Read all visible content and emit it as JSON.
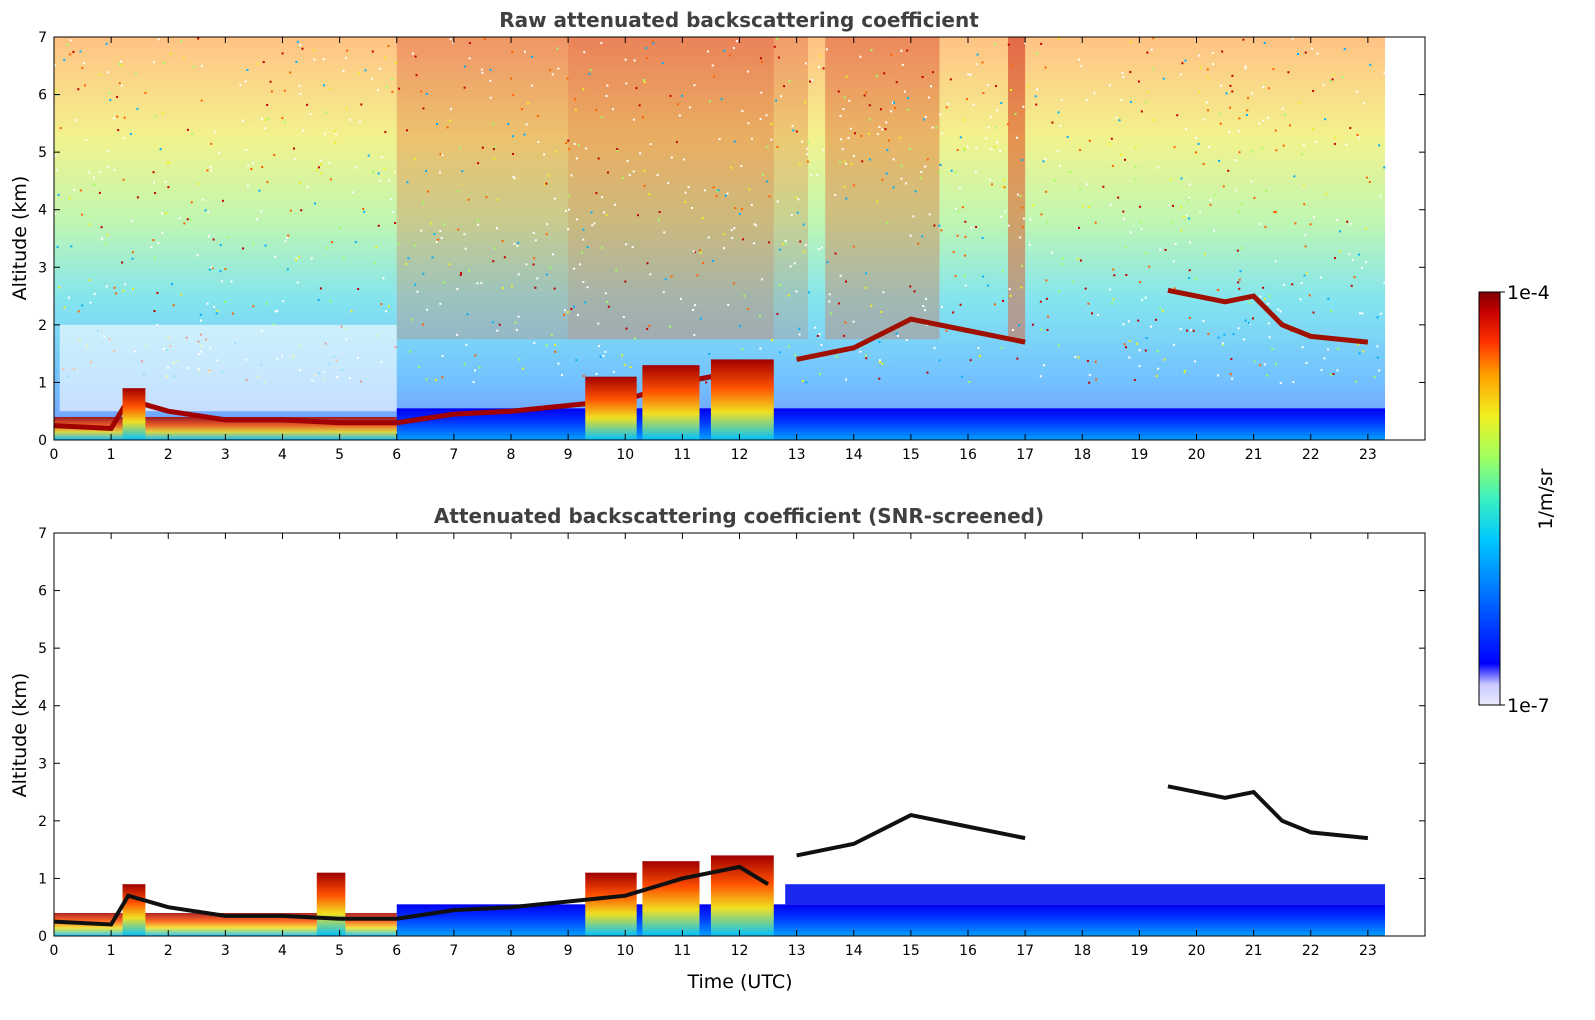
{
  "chart_data": [
    {
      "type": "heatmap",
      "title": "Raw attenuated backscattering coefficient",
      "xlabel": "",
      "ylabel": "Altitude (km)",
      "xlim": [
        0,
        24
      ],
      "ylim": [
        0,
        7
      ],
      "x_ticks": [
        "0",
        "1",
        "2",
        "3",
        "4",
        "5",
        "6",
        "7",
        "8",
        "9",
        "10",
        "11",
        "12",
        "13",
        "14",
        "15",
        "16",
        "17",
        "18",
        "19",
        "20",
        "21",
        "22",
        "23"
      ],
      "y_ticks": [
        "0",
        "1",
        "2",
        "3",
        "4",
        "5",
        "6",
        "7"
      ],
      "data_end_hour": 23.3,
      "boundary_layer_top_km": [
        [
          0,
          0.25
        ],
        [
          1,
          0.2
        ],
        [
          1.3,
          0.7
        ],
        [
          2,
          0.5
        ],
        [
          3,
          0.35
        ],
        [
          4,
          0.35
        ],
        [
          5,
          0.3
        ],
        [
          6,
          0.3
        ],
        [
          7,
          0.45
        ],
        [
          8,
          0.5
        ],
        [
          9,
          0.6
        ],
        [
          10,
          0.7
        ],
        [
          11,
          1.0
        ],
        [
          12,
          1.2
        ],
        [
          12.5,
          0.9
        ]
      ],
      "cloud_layer_km": [
        [
          13,
          1.4
        ],
        [
          14,
          1.6
        ],
        [
          15,
          2.1
        ],
        [
          16,
          1.9
        ],
        [
          17,
          1.7
        ],
        [
          19.5,
          2.6
        ],
        [
          20.5,
          2.4
        ],
        [
          21,
          2.5
        ],
        [
          21.5,
          2.0
        ],
        [
          22,
          1.8
        ],
        [
          23,
          1.7
        ]
      ]
    },
    {
      "type": "heatmap",
      "title": "Attenuated backscattering coefficient (SNR-screened)",
      "xlabel": "Time (UTC)",
      "ylabel": "Altitude (km)",
      "xlim": [
        0,
        24
      ],
      "ylim": [
        0,
        7
      ],
      "x_ticks": [
        "0",
        "1",
        "2",
        "3",
        "4",
        "5",
        "6",
        "7",
        "8",
        "9",
        "10",
        "11",
        "12",
        "13",
        "14",
        "15",
        "16",
        "17",
        "18",
        "19",
        "20",
        "21",
        "22",
        "23"
      ],
      "y_ticks": [
        "0",
        "1",
        "2",
        "3",
        "4",
        "5",
        "6",
        "7"
      ],
      "data_end_hour": 23.3
    }
  ],
  "colorbar": {
    "label": "1/m/sr",
    "max_label": "1e-4",
    "min_label": "1e-7",
    "colormap": [
      "#ececff",
      "#c8c8ff",
      "#0000ff",
      "#0066ff",
      "#00c8ff",
      "#3cf0c0",
      "#a0ff60",
      "#f0f020",
      "#ffa000",
      "#ff3000",
      "#c80000",
      "#800000"
    ]
  }
}
